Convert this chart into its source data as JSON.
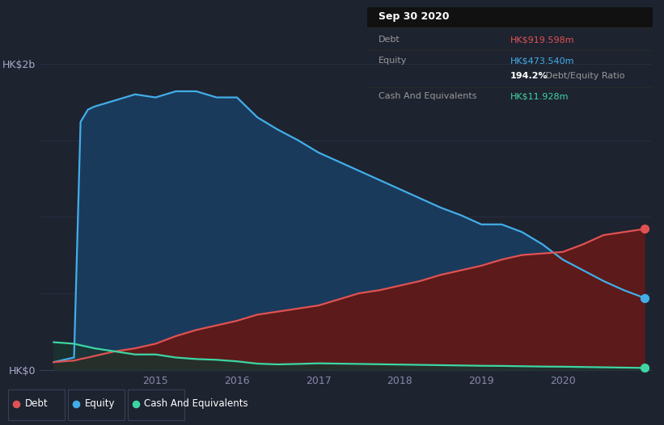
{
  "background_color": "#1e2330",
  "plot_bg_color": "#1e2330",
  "ylabel_text": "HK$2b",
  "ylabel_bottom": "HK$0",
  "x_ticks": [
    "2015",
    "2016",
    "2017",
    "2018",
    "2019",
    "2020"
  ],
  "tooltip_title": "Sep 30 2020",
  "tooltip_debt_label": "Debt",
  "tooltip_debt_value": "HK$919.598m",
  "tooltip_equity_label": "Equity",
  "tooltip_equity_value": "HK$473.540m",
  "tooltip_ratio": "194.2%",
  "tooltip_ratio_text": " Debt/Equity Ratio",
  "tooltip_cash_label": "Cash And Equivalents",
  "tooltip_cash_value": "HK$11.928m",
  "debt_color": "#e05252",
  "equity_color": "#42aee8",
  "cash_color": "#3dd6a3",
  "debt_fill_color": "#5c1a1a",
  "equity_fill_color": "#1a3a5c",
  "cash_fill_color": "#1a3530",
  "legend_debt": "Debt",
  "legend_equity": "Equity",
  "legend_cash": "Cash And Equivalents",
  "time_points": [
    2013.75,
    2014.0,
    2014.08,
    2014.17,
    2014.25,
    2014.5,
    2014.75,
    2015.0,
    2015.25,
    2015.5,
    2015.75,
    2016.0,
    2016.25,
    2016.5,
    2016.75,
    2017.0,
    2017.25,
    2017.5,
    2017.75,
    2018.0,
    2018.25,
    2018.5,
    2018.75,
    2019.0,
    2019.25,
    2019.5,
    2019.75,
    2020.0,
    2020.25,
    2020.5,
    2020.75,
    2021.0
  ],
  "equity_values": [
    0.05,
    0.08,
    1.62,
    1.7,
    1.72,
    1.76,
    1.8,
    1.78,
    1.82,
    1.82,
    1.78,
    1.78,
    1.65,
    1.57,
    1.5,
    1.42,
    1.36,
    1.3,
    1.24,
    1.18,
    1.12,
    1.06,
    1.01,
    0.95,
    0.95,
    0.9,
    0.82,
    0.72,
    0.65,
    0.58,
    0.52,
    0.47
  ],
  "debt_values": [
    0.05,
    0.06,
    0.07,
    0.08,
    0.09,
    0.12,
    0.14,
    0.17,
    0.22,
    0.26,
    0.29,
    0.32,
    0.36,
    0.38,
    0.4,
    0.42,
    0.46,
    0.5,
    0.52,
    0.55,
    0.58,
    0.62,
    0.65,
    0.68,
    0.72,
    0.75,
    0.76,
    0.77,
    0.82,
    0.88,
    0.9,
    0.92
  ],
  "cash_values": [
    0.18,
    0.17,
    0.16,
    0.15,
    0.14,
    0.12,
    0.1,
    0.1,
    0.08,
    0.07,
    0.065,
    0.055,
    0.04,
    0.035,
    0.038,
    0.042,
    0.04,
    0.038,
    0.036,
    0.034,
    0.032,
    0.03,
    0.028,
    0.026,
    0.025,
    0.023,
    0.021,
    0.02,
    0.018,
    0.016,
    0.014,
    0.012
  ],
  "ymax": 2.0,
  "ymin": 0.0,
  "xmin": 2013.58,
  "xmax": 2021.08
}
